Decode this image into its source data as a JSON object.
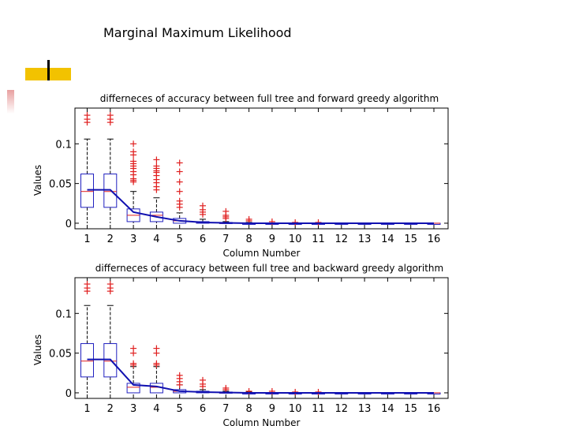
{
  "slide": {
    "title": "Marginal Maximum Likelihood"
  },
  "chart_data": [
    {
      "type": "box",
      "title": "differneces of accuracy between full tree and forward greedy algorithm",
      "xlabel": "Column Number",
      "ylabel": "Values",
      "categories": [
        "1",
        "2",
        "3",
        "4",
        "5",
        "6",
        "7",
        "8",
        "9",
        "10",
        "11",
        "12",
        "13",
        "14",
        "15",
        "16"
      ],
      "ylim": [
        -0.007,
        0.145
      ],
      "yticks": [
        0,
        0.05,
        0.1
      ],
      "ytick_labels": [
        "0",
        "0.05",
        "0.1"
      ],
      "grid": false,
      "boxes": [
        {
          "q1": 0.02,
          "median": 0.04,
          "q3": 0.062,
          "wlo": 0,
          "whi": 0.106
        },
        {
          "q1": 0.02,
          "median": 0.04,
          "q3": 0.062,
          "wlo": 0,
          "whi": 0.106
        },
        {
          "q1": 0.002,
          "median": 0.01,
          "q3": 0.018,
          "wlo": 0,
          "whi": 0.04
        },
        {
          "q1": 0.002,
          "median": 0.01,
          "q3": 0.014,
          "wlo": 0,
          "whi": 0.032
        },
        {
          "q1": 0.0,
          "median": 0.003,
          "q3": 0.006,
          "wlo": 0,
          "whi": 0.013
        },
        {
          "q1": 0.0,
          "median": 0.001,
          "q3": 0.002,
          "wlo": 0,
          "whi": 0.005
        },
        {
          "q1": 0.0,
          "median": 0.0,
          "q3": 0.001,
          "wlo": 0,
          "whi": 0.002
        },
        {
          "q1": 0.0,
          "median": 0.0,
          "q3": 0.0,
          "wlo": 0,
          "whi": 0.001
        },
        {
          "q1": 0.0,
          "median": 0.0,
          "q3": 0.0,
          "wlo": 0,
          "whi": 0.0
        },
        {
          "q1": 0.0,
          "median": 0.0,
          "q3": 0.0,
          "wlo": 0,
          "whi": 0.0
        },
        {
          "q1": 0.0,
          "median": 0.0,
          "q3": 0.0,
          "wlo": 0,
          "whi": 0.0
        },
        {
          "q1": 0.0,
          "median": 0.0,
          "q3": 0.0,
          "wlo": 0,
          "whi": 0.0
        },
        {
          "q1": 0.0,
          "median": 0.0,
          "q3": 0.0,
          "wlo": 0,
          "whi": 0.0
        },
        {
          "q1": 0.0,
          "median": 0.0,
          "q3": 0.0,
          "wlo": 0,
          "whi": 0.0
        },
        {
          "q1": 0.0,
          "median": 0.0,
          "q3": 0.0,
          "wlo": 0,
          "whi": 0.0
        },
        {
          "q1": 0.0,
          "median": 0.0,
          "q3": 0.0,
          "wlo": 0,
          "whi": 0.0
        }
      ],
      "mean_line": [
        0.042,
        0.042,
        0.014,
        0.008,
        0.003,
        0.001,
        0.0005,
        0,
        0,
        0,
        0,
        0,
        0,
        0,
        0,
        0
      ],
      "outliers": [
        [
          0.127,
          0.131,
          0.136
        ],
        [
          0.127,
          0.131,
          0.136
        ],
        [
          0.052,
          0.054,
          0.056,
          0.061,
          0.065,
          0.069,
          0.072,
          0.075,
          0.078,
          0.086,
          0.09,
          0.1
        ],
        [
          0.042,
          0.046,
          0.051,
          0.055,
          0.06,
          0.064,
          0.066,
          0.069,
          0.072,
          0.08
        ],
        [
          0.02,
          0.024,
          0.028,
          0.04,
          0.052,
          0.065,
          0.076
        ],
        [
          0.011,
          0.014,
          0.017,
          0.022
        ],
        [
          0.006,
          0.008,
          0.01,
          0.015
        ],
        [
          0.003,
          0.005
        ],
        [
          0.002
        ],
        [
          0.001
        ],
        [
          0.001
        ],
        [],
        [],
        [],
        [],
        []
      ]
    },
    {
      "type": "box",
      "title": "differneces of accuracy between full tree and backward greedy algorithm",
      "xlabel": "Column Number",
      "ylabel": "Values",
      "categories": [
        "1",
        "2",
        "3",
        "4",
        "5",
        "6",
        "7",
        "8",
        "9",
        "10",
        "11",
        "12",
        "13",
        "14",
        "15",
        "16"
      ],
      "ylim": [
        -0.007,
        0.145
      ],
      "yticks": [
        0,
        0.05,
        0.1
      ],
      "ytick_labels": [
        "0",
        "0.05",
        "0.1"
      ],
      "grid": false,
      "boxes": [
        {
          "q1": 0.02,
          "median": 0.04,
          "q3": 0.062,
          "wlo": 0,
          "whi": 0.11
        },
        {
          "q1": 0.02,
          "median": 0.04,
          "q3": 0.062,
          "wlo": 0,
          "whi": 0.11
        },
        {
          "q1": 0.0,
          "median": 0.007,
          "q3": 0.012,
          "wlo": 0,
          "whi": 0.033
        },
        {
          "q1": 0.0,
          "median": 0.007,
          "q3": 0.012,
          "wlo": 0,
          "whi": 0.033
        },
        {
          "q1": 0.0,
          "median": 0.002,
          "q3": 0.004,
          "wlo": 0,
          "whi": 0.01
        },
        {
          "q1": 0.0,
          "median": 0.001,
          "q3": 0.002,
          "wlo": 0,
          "whi": 0.004
        },
        {
          "q1": 0.0,
          "median": 0.0,
          "q3": 0.001,
          "wlo": 0,
          "whi": 0.002
        },
        {
          "q1": 0.0,
          "median": 0.0,
          "q3": 0.0,
          "wlo": 0,
          "whi": 0.001
        },
        {
          "q1": 0.0,
          "median": 0.0,
          "q3": 0.0,
          "wlo": 0,
          "whi": 0.0
        },
        {
          "q1": 0.0,
          "median": 0.0,
          "q3": 0.0,
          "wlo": 0,
          "whi": 0.0
        },
        {
          "q1": 0.0,
          "median": 0.0,
          "q3": 0.0,
          "wlo": 0,
          "whi": 0.0
        },
        {
          "q1": 0.0,
          "median": 0.0,
          "q3": 0.0,
          "wlo": 0,
          "whi": 0.0
        },
        {
          "q1": 0.0,
          "median": 0.0,
          "q3": 0.0,
          "wlo": 0,
          "whi": 0.0
        },
        {
          "q1": 0.0,
          "median": 0.0,
          "q3": 0.0,
          "wlo": 0,
          "whi": 0.0
        },
        {
          "q1": 0.0,
          "median": 0.0,
          "q3": 0.0,
          "wlo": 0,
          "whi": 0.0
        },
        {
          "q1": 0.0,
          "median": 0.0,
          "q3": 0.0,
          "wlo": 0,
          "whi": 0.0
        }
      ],
      "mean_line": [
        0.042,
        0.042,
        0.01,
        0.008,
        0.002,
        0.001,
        0.0005,
        0,
        0,
        0,
        0,
        0,
        0,
        0,
        0,
        0
      ],
      "outliers": [
        [
          0.128,
          0.132,
          0.137
        ],
        [
          0.128,
          0.132,
          0.137
        ],
        [
          0.035,
          0.037,
          0.05,
          0.056
        ],
        [
          0.035,
          0.037,
          0.05,
          0.056
        ],
        [
          0.01,
          0.014,
          0.018,
          0.022
        ],
        [
          0.008,
          0.011,
          0.016
        ],
        [
          0.004,
          0.006
        ],
        [
          0.002
        ],
        [
          0.002
        ],
        [
          0.001
        ],
        [
          0.001
        ],
        [],
        [],
        [],
        [],
        []
      ]
    }
  ],
  "colors": {
    "box": "#2020c0",
    "mean_line": "#1010b0",
    "median": "#e02020",
    "outlier": "#e02020",
    "whisker": "#000000",
    "axis": "#000000",
    "title_accent": "#f2c200"
  }
}
